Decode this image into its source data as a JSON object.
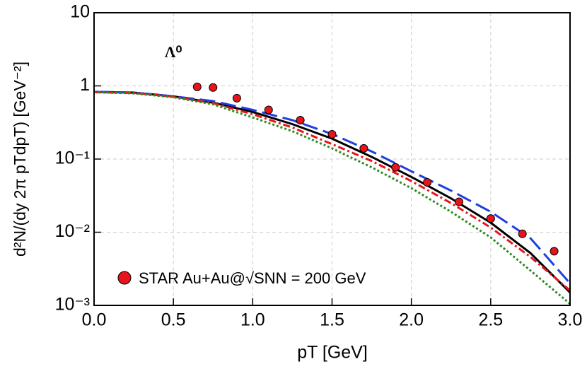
{
  "chart_data": {
    "type": "line",
    "log_y": true,
    "grid": true,
    "y_label": "d²N/(dy 2π pTdpT) [GeV⁻²]",
    "x_label": "pT [GeV]",
    "annotation": "Λ⁰",
    "xlim": [
      0,
      3
    ],
    "ylim": [
      0.001,
      10
    ],
    "xticks": [
      {
        "value": 0,
        "label": "0.0"
      },
      0.5,
      {
        "value": 1,
        "label": "1.0"
      },
      1.5,
      {
        "value": 2,
        "label": "2.0"
      },
      2.5,
      {
        "value": 3,
        "label": "3.0"
      }
    ],
    "yticks": [
      {
        "value": 10,
        "label": "10"
      },
      {
        "value": 1,
        "label": "1"
      },
      {
        "value": 0.1,
        "label": "10⁻¹"
      },
      {
        "value": 0.01,
        "label": "10⁻²"
      },
      {
        "value": 0.001,
        "label": "10⁻³"
      }
    ],
    "series": [
      {
        "name": "STAR Au+Au@√SNN = 200 GeV",
        "style": "points",
        "color": "#e8141b",
        "x": [
          0.65,
          0.75,
          0.9,
          1.1,
          1.3,
          1.5,
          1.7,
          1.9,
          2.1,
          2.3,
          2.5,
          2.7,
          2.9
        ],
        "values": [
          0.97,
          0.95,
          0.68,
          0.47,
          0.34,
          0.218,
          0.14,
          0.077,
          0.048,
          0.026,
          0.0154,
          0.0095,
          0.0055
        ]
      },
      {
        "style": "solid",
        "color": "#000000",
        "x": [
          0,
          0.25,
          0.5,
          0.75,
          1,
          1.25,
          1.5,
          1.75,
          2,
          2.25,
          2.5,
          2.75,
          3
        ],
        "values": [
          0.83,
          0.81,
          0.72,
          0.59,
          0.44,
          0.3,
          0.19,
          0.107,
          0.057,
          0.029,
          0.0135,
          0.0052,
          0.0015
        ]
      },
      {
        "style": "dashed",
        "color": "#1f3fe0",
        "x": [
          0,
          0.25,
          0.5,
          0.75,
          1,
          1.25,
          1.5,
          1.75,
          2,
          2.25,
          2.5,
          2.75,
          3
        ],
        "values": [
          0.83,
          0.81,
          0.72,
          0.62,
          0.47,
          0.34,
          0.22,
          0.127,
          0.068,
          0.037,
          0.019,
          0.0083,
          0.002
        ]
      },
      {
        "style": "dashdot",
        "color": "#e8141b",
        "x": [
          0,
          0.25,
          0.5,
          0.75,
          1,
          1.25,
          1.5,
          1.75,
          2,
          2.25,
          2.5,
          2.75,
          3
        ],
        "values": [
          0.82,
          0.8,
          0.71,
          0.58,
          0.41,
          0.27,
          0.16,
          0.094,
          0.05,
          0.025,
          0.0116,
          0.0046,
          0.0016
        ]
      },
      {
        "style": "dotted",
        "color": "#2e8b1e",
        "x": [
          0,
          0.25,
          0.5,
          0.75,
          1,
          1.25,
          1.5,
          1.75,
          2,
          2.25,
          2.5,
          2.75,
          3
        ],
        "values": [
          0.82,
          0.79,
          0.7,
          0.56,
          0.37,
          0.24,
          0.14,
          0.077,
          0.04,
          0.019,
          0.0085,
          0.003,
          0.00105
        ]
      }
    ]
  }
}
